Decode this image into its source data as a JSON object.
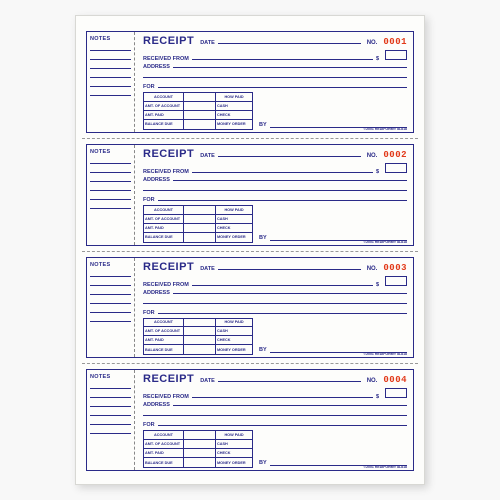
{
  "colors": {
    "ink": "#2a2a88",
    "serial": "#e23a1a",
    "paper": "#fdfdfb",
    "perforation": "#999999"
  },
  "fontsize": {
    "title": 11,
    "label": 5.5,
    "serial": 9,
    "table": 3.8,
    "copyright": 3.5
  },
  "labels": {
    "notes": "NOTES",
    "title": "RECEIPT",
    "date": "DATE",
    "no": "NO.",
    "received_from": "RECEIVED FROM",
    "dollars": "$",
    "address": "ADDRESS",
    "for": "FOR",
    "by": "BY"
  },
  "table": {
    "headers": [
      "ACCOUNT",
      "",
      "HOW PAID"
    ],
    "rows": [
      [
        "AMT. OF ACCOUNT",
        "",
        "CASH"
      ],
      [
        "AMT. PAID",
        "",
        "CHECK"
      ],
      [
        "BALANCE DUE",
        "",
        "MONEY ORDER"
      ]
    ]
  },
  "copyright": "©2001 REDIFORM® 8L818",
  "slips": [
    {
      "serial": "0001"
    },
    {
      "serial": "0002"
    },
    {
      "serial": "0003"
    },
    {
      "serial": "0004"
    }
  ]
}
